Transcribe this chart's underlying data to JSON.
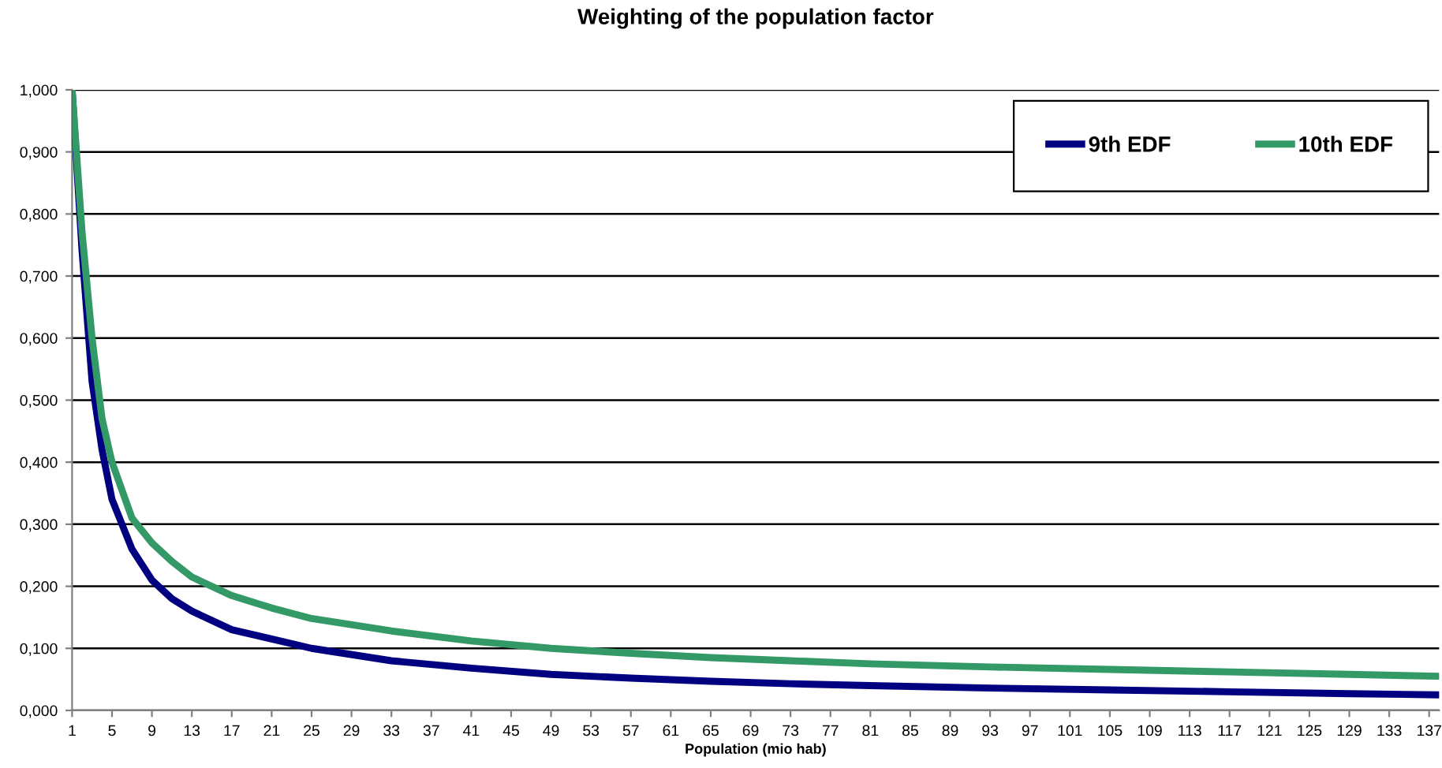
{
  "chart_data": {
    "type": "line",
    "title": "Weighting of the population factor",
    "xlabel": "Population (mio hab)",
    "xlim": [
      1,
      138
    ],
    "xticks": [
      1,
      5,
      9,
      13,
      17,
      21,
      25,
      29,
      33,
      37,
      41,
      45,
      49,
      53,
      57,
      61,
      65,
      69,
      73,
      77,
      81,
      85,
      89,
      93,
      97,
      101,
      105,
      109,
      113,
      117,
      121,
      125,
      129,
      133,
      137
    ],
    "ylim": [
      0,
      1
    ],
    "yticks": [
      {
        "value": 0,
        "label": "0,000"
      },
      {
        "value": 0.1,
        "label": "0,100"
      },
      {
        "value": 0.2,
        "label": "0,200"
      },
      {
        "value": 0.3,
        "label": "0,300"
      },
      {
        "value": 0.4,
        "label": "0,400"
      },
      {
        "value": 0.5,
        "label": "0,500"
      },
      {
        "value": 0.6,
        "label": "0,600"
      },
      {
        "value": 0.7,
        "label": "0,700"
      },
      {
        "value": 0.8,
        "label": "0,800"
      },
      {
        "value": 0.9,
        "label": "0,900"
      },
      {
        "value": 1,
        "label": "1,000"
      }
    ],
    "grid": "y",
    "legend": "top right",
    "marker": "none",
    "line_style": "solid",
    "series": [
      {
        "name": "9th EDF",
        "color": "#000080",
        "x": [
          1,
          2,
          3,
          4,
          5,
          7,
          9,
          11,
          13,
          17,
          21,
          25,
          33,
          41,
          49,
          57,
          65,
          73,
          81,
          93,
          105,
          117,
          129,
          138
        ],
        "values": [
          1.0,
          0.74,
          0.53,
          0.42,
          0.34,
          0.26,
          0.21,
          0.18,
          0.16,
          0.13,
          0.115,
          0.1,
          0.08,
          0.068,
          0.058,
          0.052,
          0.047,
          0.043,
          0.04,
          0.036,
          0.033,
          0.03,
          0.027,
          0.025
        ]
      },
      {
        "name": "10th EDF",
        "color": "#339966",
        "x": [
          1,
          2,
          3,
          4,
          5,
          7,
          9,
          11,
          13,
          17,
          21,
          25,
          33,
          41,
          49,
          57,
          65,
          73,
          81,
          93,
          105,
          117,
          129,
          138
        ],
        "values": [
          1.0,
          0.77,
          0.6,
          0.47,
          0.4,
          0.31,
          0.27,
          0.24,
          0.215,
          0.185,
          0.165,
          0.148,
          0.128,
          0.112,
          0.1,
          0.092,
          0.085,
          0.08,
          0.075,
          0.07,
          0.066,
          0.062,
          0.058,
          0.055
        ]
      }
    ]
  }
}
